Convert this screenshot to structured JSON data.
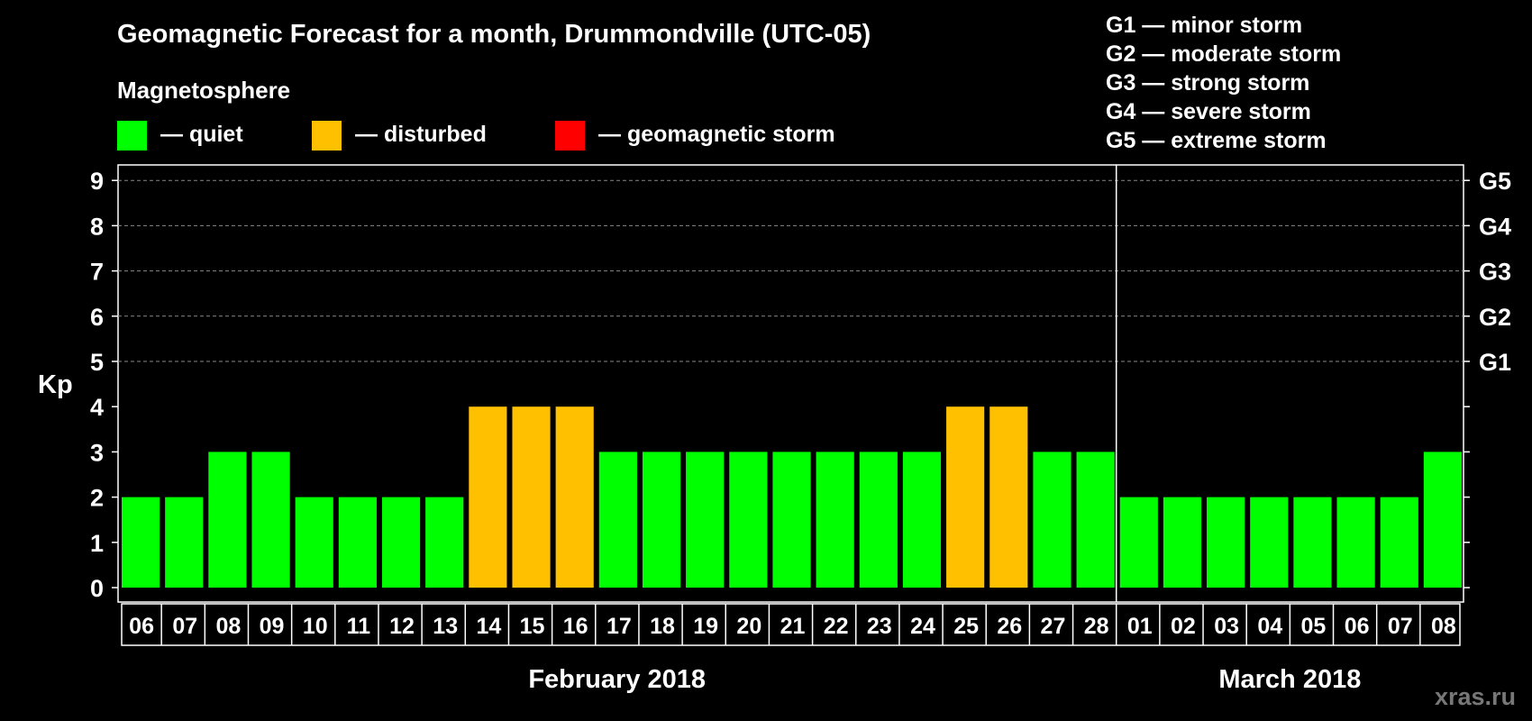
{
  "title": "Geomagnetic Forecast for a month, Drummondville (UTC-05)",
  "subtitle": "Magnetosphere",
  "legend": [
    {
      "label": "— quiet",
      "color": "#00ff00"
    },
    {
      "label": "— disturbed",
      "color": "#ffc000"
    },
    {
      "label": "— geomagnetic storm",
      "color": "#ff0000"
    }
  ],
  "storm_scale": [
    "G1 — minor storm",
    "G2 — moderate storm",
    "G3 — strong storm",
    "G4 — severe storm",
    "G5 — extreme storm"
  ],
  "watermark": "xras.ru",
  "chart_data": {
    "type": "bar",
    "title": "Geomagnetic Forecast for a month, Drummondville (UTC-05)",
    "ylabel": "Kp",
    "ylim": [
      0,
      9
    ],
    "yticks": [
      "0",
      "1",
      "2",
      "3",
      "4",
      "5",
      "6",
      "7",
      "8",
      "9"
    ],
    "right_ticks": [
      {
        "kp": 5,
        "label": "G1"
      },
      {
        "kp": 6,
        "label": "G2"
      },
      {
        "kp": 7,
        "label": "G3"
      },
      {
        "kp": 8,
        "label": "G4"
      },
      {
        "kp": 9,
        "label": "G5"
      }
    ],
    "categories": [
      "06",
      "07",
      "08",
      "09",
      "10",
      "11",
      "12",
      "13",
      "14",
      "15",
      "16",
      "17",
      "18",
      "19",
      "20",
      "21",
      "22",
      "23",
      "24",
      "25",
      "26",
      "27",
      "28",
      "01",
      "02",
      "03",
      "04",
      "05",
      "06",
      "07",
      "08"
    ],
    "values": [
      2,
      2,
      3,
      3,
      2,
      2,
      2,
      2,
      4,
      4,
      4,
      3,
      3,
      3,
      3,
      3,
      3,
      3,
      3,
      4,
      4,
      3,
      3,
      2,
      2,
      2,
      2,
      2,
      2,
      2,
      3
    ],
    "status": [
      "quiet",
      "quiet",
      "quiet",
      "quiet",
      "quiet",
      "quiet",
      "quiet",
      "quiet",
      "disturbed",
      "disturbed",
      "disturbed",
      "quiet",
      "quiet",
      "quiet",
      "quiet",
      "quiet",
      "quiet",
      "quiet",
      "quiet",
      "disturbed",
      "disturbed",
      "quiet",
      "quiet",
      "quiet",
      "quiet",
      "quiet",
      "quiet",
      "quiet",
      "quiet",
      "quiet",
      "quiet"
    ],
    "months": [
      {
        "label": "February 2018",
        "start": 0,
        "count": 23
      },
      {
        "label": "March 2018",
        "start": 23,
        "count": 8
      }
    ],
    "grid": "dashed at Kp 5-9"
  }
}
